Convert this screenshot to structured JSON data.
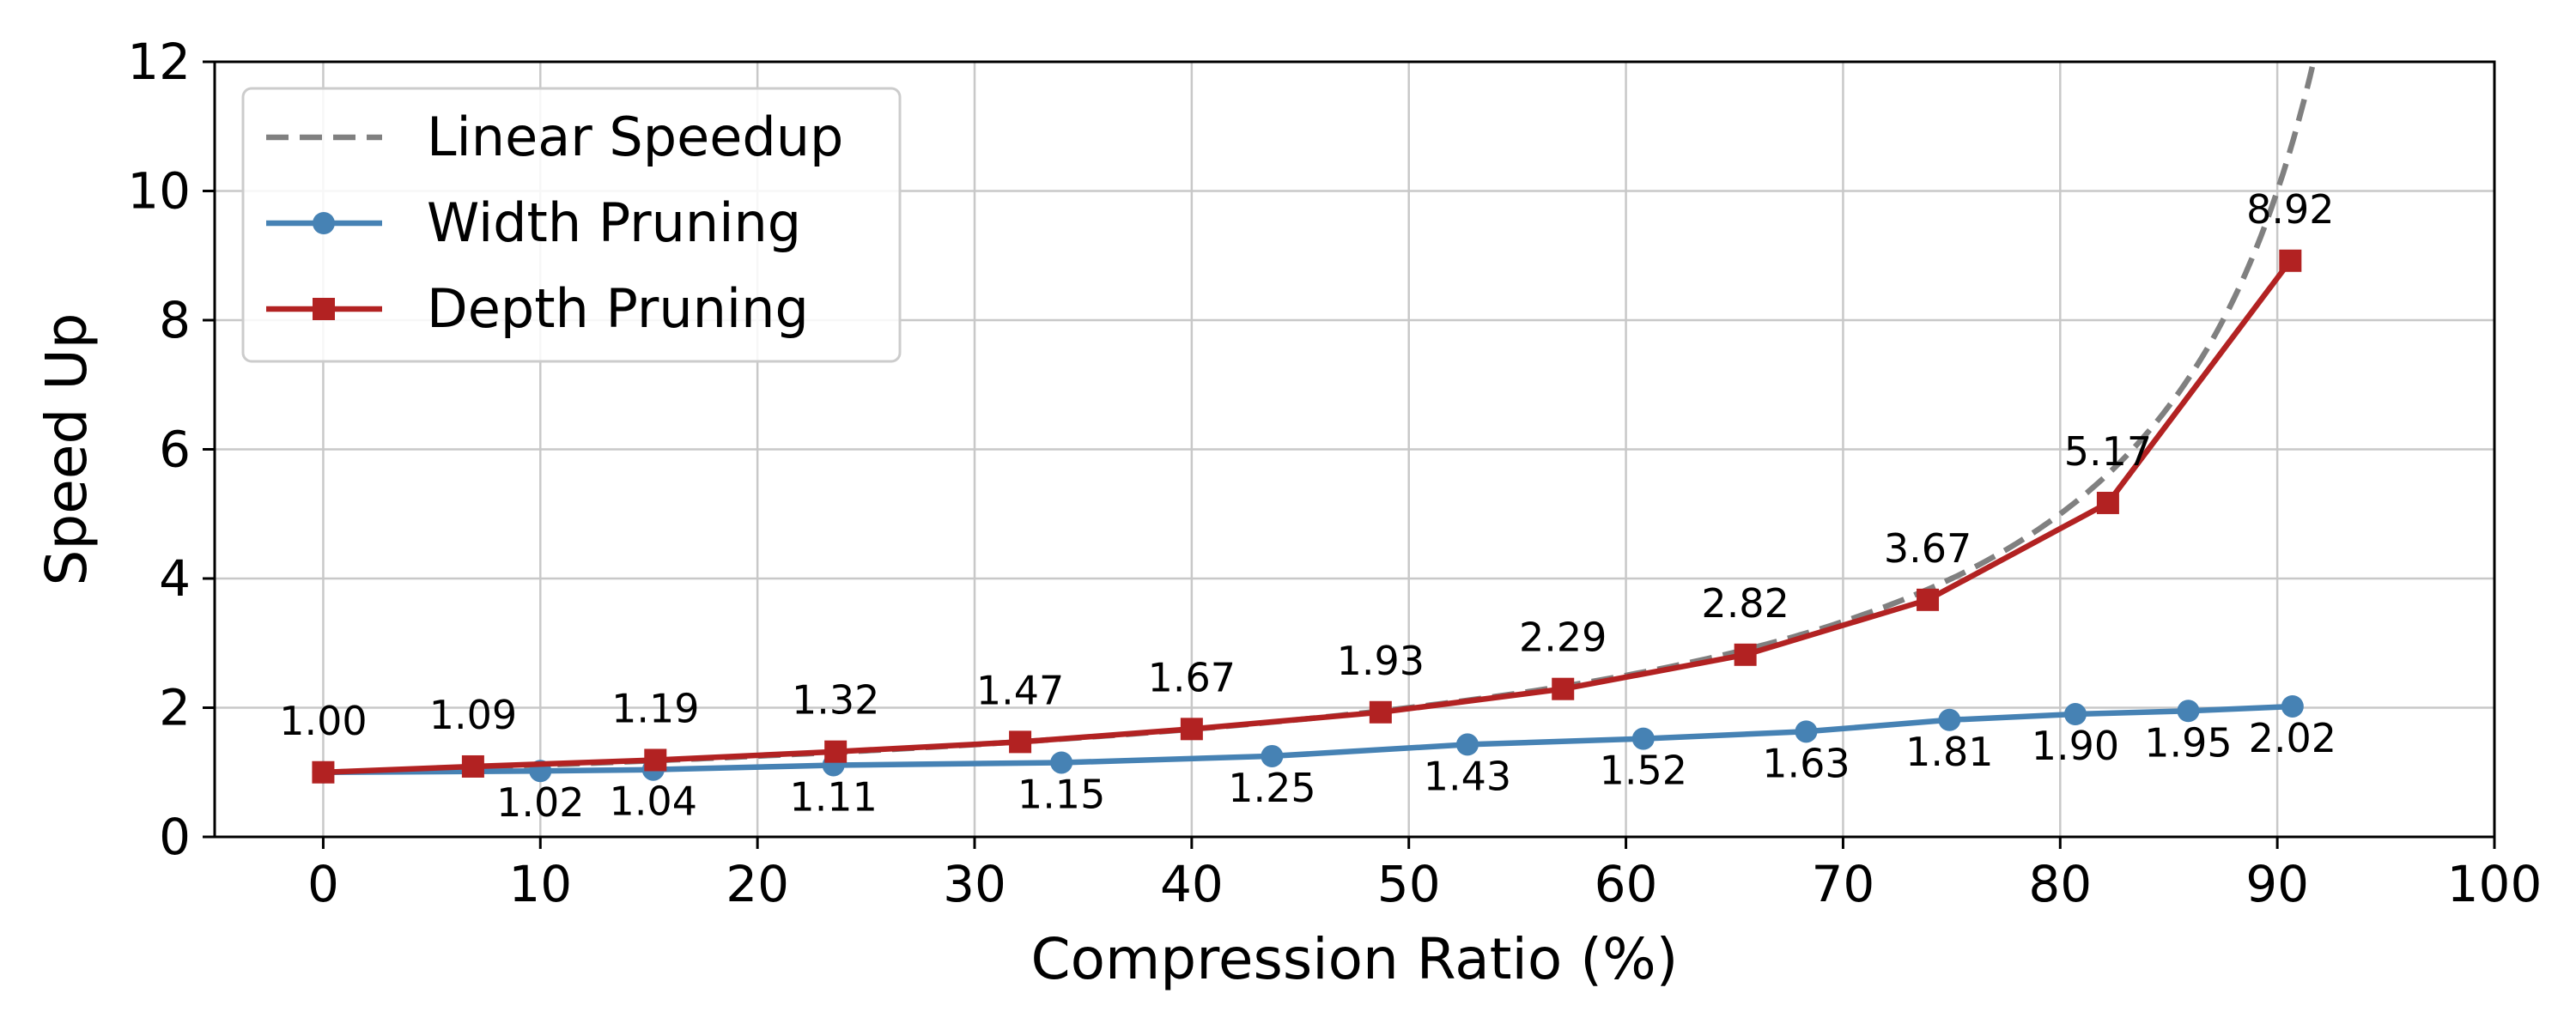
{
  "chart_data": {
    "type": "line",
    "xlabel": "Compression Ratio (%)",
    "ylabel": "Speed Up",
    "xlim": [
      -5,
      100
    ],
    "ylim": [
      0,
      12
    ],
    "xticks": [
      0,
      10,
      20,
      30,
      40,
      50,
      60,
      70,
      80,
      90,
      100
    ],
    "yticks": [
      0,
      2,
      4,
      6,
      8,
      10,
      12
    ],
    "grid": true,
    "legend_position": "top-left",
    "series": [
      {
        "name": "Linear Speedup",
        "style": "dashed",
        "color": "#808080",
        "function": "100 / (100 - x)",
        "x_range": [
          0,
          92
        ]
      },
      {
        "name": "Width Pruning",
        "style": "solid",
        "marker": "circle",
        "color": "#4682B4",
        "x": [
          0,
          10,
          15.2,
          23.5,
          34,
          43.7,
          52.7,
          60.8,
          68.3,
          74.9,
          80.7,
          85.9,
          90.7
        ],
        "values": [
          1.0,
          1.02,
          1.04,
          1.11,
          1.15,
          1.25,
          1.43,
          1.52,
          1.63,
          1.81,
          1.9,
          1.95,
          2.02
        ],
        "labels": [
          "",
          "1.02",
          "1.04",
          "1.11",
          "1.15",
          "1.25",
          "1.43",
          "1.52",
          "1.63",
          "1.81",
          "1.90",
          "1.95",
          "2.02"
        ]
      },
      {
        "name": "Depth Pruning",
        "style": "solid",
        "marker": "square",
        "color": "#B22222",
        "x": [
          0,
          6.9,
          15.3,
          23.6,
          32.1,
          40,
          48.7,
          57.1,
          65.5,
          73.9,
          82.2,
          90.6
        ],
        "values": [
          1.0,
          1.09,
          1.19,
          1.32,
          1.47,
          1.67,
          1.93,
          2.29,
          2.82,
          3.67,
          5.17,
          8.92
        ],
        "labels": [
          "1.00",
          "1.09",
          "1.19",
          "1.32",
          "1.47",
          "1.67",
          "1.93",
          "2.29",
          "2.82",
          "3.67",
          "5.17",
          "8.92"
        ]
      }
    ]
  }
}
